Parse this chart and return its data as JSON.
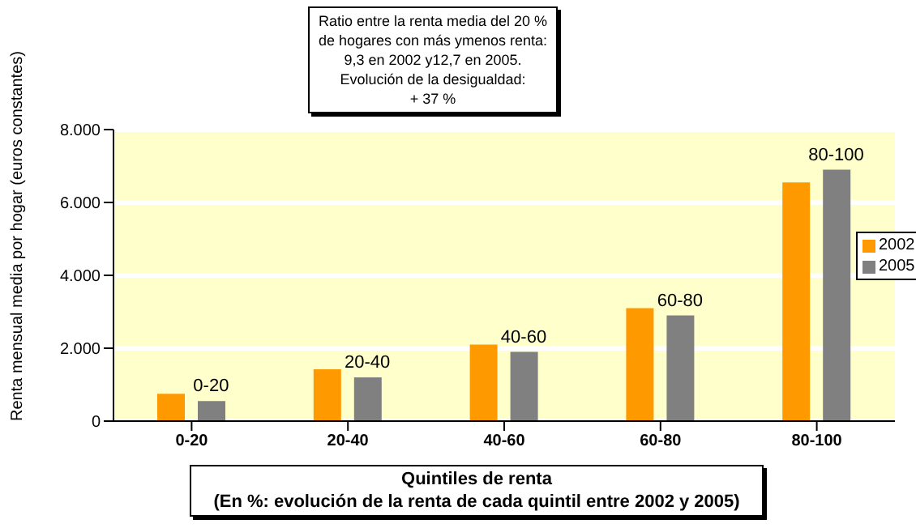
{
  "chart_data": {
    "type": "bar",
    "title": "Ratio entre la renta media del 20 %\nde hogares con más ymenos renta:\n9,3 en 2002 y12,7 en 2005.\nEvolución de la desigualdad:\n+ 37 %",
    "xlabel": "Quintiles de renta\n(En %: evolución de la renta de cada quintil entre 2002 y 2005)",
    "ylabel": "Renta mensual media por hogar (euros constantes)",
    "categories": [
      "0-20",
      "20-40",
      "40-60",
      "60-80",
      "80-100"
    ],
    "series": [
      {
        "name": "2002",
        "color": "#ff9900",
        "values": [
          750,
          1420,
          2100,
          3100,
          6550
        ]
      },
      {
        "name": "2005",
        "color": "#808080",
        "values": [
          550,
          1200,
          1900,
          2900,
          6900
        ]
      }
    ],
    "annotations": [
      {
        "text": "0-20",
        "x": "0-20",
        "y": 550
      },
      {
        "text": "20-40",
        "x": "20-40",
        "y": 1200
      },
      {
        "text": "40-60",
        "x": "40-60",
        "y": 1900
      },
      {
        "text": "60-80",
        "x": "60-80",
        "y": 2900
      },
      {
        "text": "80-100",
        "x": "80-100",
        "y": 6900
      }
    ],
    "ylim": [
      0,
      8000
    ],
    "yticks": [
      {
        "value": 0,
        "label": "0"
      },
      {
        "value": 2000,
        "label": "2.000"
      },
      {
        "value": 4000,
        "label": "4.000"
      },
      {
        "value": 6000,
        "label": "6.000"
      },
      {
        "value": 8000,
        "label": "8.000"
      }
    ],
    "grid": "y",
    "legend": "right"
  }
}
